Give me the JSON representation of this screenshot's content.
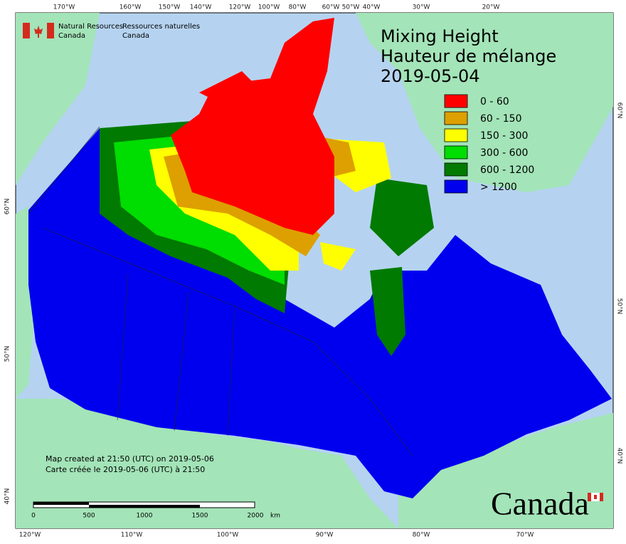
{
  "header": {
    "agency_en": [
      "Natural Resources",
      "Canada"
    ],
    "agency_fr": [
      "Ressources naturelles",
      "Canada"
    ]
  },
  "title": [
    "Mixing Height",
    "Hauteur de mélange",
    "2019-05-04"
  ],
  "legend": [
    {
      "label": "0 - 60",
      "color": "#ff0000"
    },
    {
      "label": "60 - 150",
      "color": "#dda000"
    },
    {
      "label": "150 - 300",
      "color": "#ffff00"
    },
    {
      "label": "300 - 600",
      "color": "#00dd00"
    },
    {
      "label": "600 - 1200",
      "color": "#007a00"
    },
    {
      "label": "> 1200",
      "color": "#0000ee"
    }
  ],
  "graticule": {
    "top": [
      "170°W",
      "160°W",
      "150°W",
      "140°W",
      "120°W",
      "100°W",
      "80°W",
      "60°W",
      "50°W",
      "40°W",
      "30°W",
      "20°W"
    ],
    "bottom": [
      "120°W",
      "110°W",
      "100°W",
      "90°W",
      "80°W",
      "70°W"
    ],
    "left": [
      "60°N",
      "50°N",
      "40°N"
    ],
    "right": [
      "60°N",
      "50°N",
      "40°N"
    ]
  },
  "scale": {
    "ticks": [
      "0",
      "500",
      "1000",
      "1500",
      "2000"
    ],
    "unit": "km"
  },
  "credits": [
    "Map created at 21:50 (UTC) on 2019-05-06",
    "Carte créée le 2019-05-06 (UTC) à 21:50"
  ],
  "wordmark": "Canada"
}
